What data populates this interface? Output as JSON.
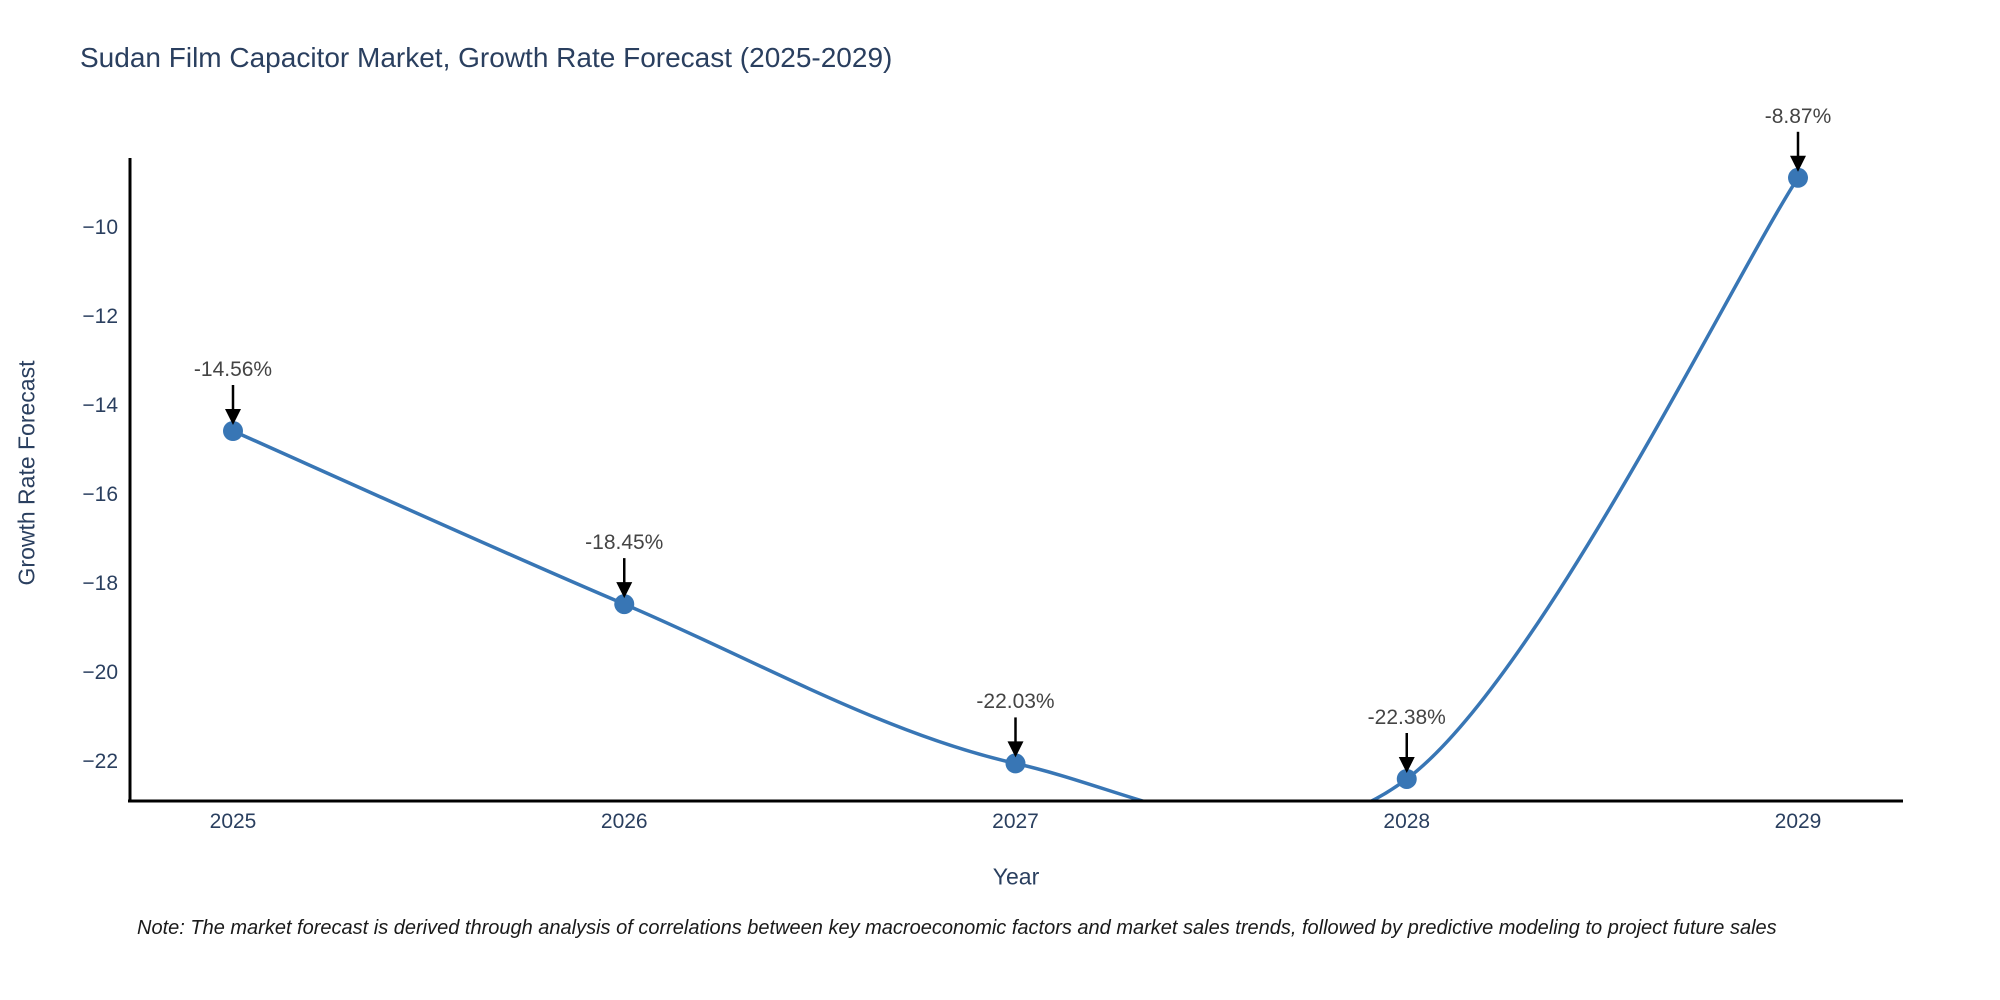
{
  "title": "Sudan Film Capacitor Market, Growth Rate Forecast (2025-2029)",
  "note": "Note: The market forecast is derived through analysis of correlations between key macroeconomic factors and market sales trends, followed by predictive modeling to project future sales",
  "chart_data": {
    "type": "line",
    "line_shape": "spline",
    "x": [
      2025,
      2026,
      2027,
      2028,
      2029
    ],
    "series": [
      {
        "name": "Growth Rate Forecast",
        "values": [
          -14.56,
          -18.45,
          -22.03,
          -22.38,
          -8.87
        ]
      }
    ],
    "point_labels": [
      "-14.56%",
      "-18.45%",
      "-22.03%",
      "-22.38%",
      "-8.87%"
    ],
    "title": "Sudan Film Capacitor Market, Growth Rate Forecast (2025-2029)",
    "xlabel": "Year",
    "ylabel": "Growth Rate Forecast",
    "x_tick_labels": [
      "2025",
      "2026",
      "2027",
      "2028",
      "2029"
    ],
    "y_tick_labels": [
      "−10",
      "−12",
      "−14",
      "−16",
      "−18",
      "−20",
      "−22"
    ],
    "y_tick_values": [
      -10,
      -12,
      -14,
      -16,
      -18,
      -20,
      -22
    ],
    "ylim": [
      -22.9,
      -8.4
    ],
    "grid": false,
    "legend": false,
    "colors": {
      "line": "#3876b5",
      "marker": "#3876b5",
      "axis": "#000000",
      "title_text": "#2a3f5f",
      "tick_text": "#2a3f5f",
      "annotation_text": "#444444",
      "annotation_arrow": "#000000",
      "background": "#ffffff"
    }
  }
}
